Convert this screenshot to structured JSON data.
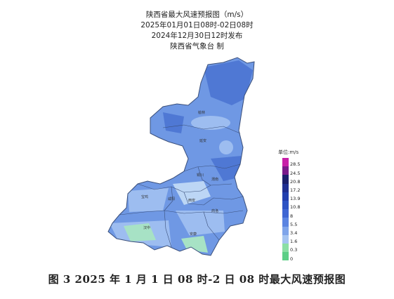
{
  "title": {
    "line1": "陕西省最大风速预报图（m/s）",
    "line2": "2025年01月01日08时-02日08时",
    "line3": "2024年12月30日12时发布",
    "line4": "陕西省气象台 制"
  },
  "legend": {
    "unit": "单位:m/s",
    "colors": [
      "#c81fa8",
      "#7a1a8a",
      "#1c1f6b",
      "#202f91",
      "#233fae",
      "#2d53c4",
      "#3f66d3",
      "#5b84e1",
      "#7fa5ea",
      "#a5c4f1",
      "#8bdfa5",
      "#5ccf86"
    ],
    "labels": [
      "28.5",
      "24.5",
      "20.8",
      "17.2",
      "13.9",
      "10.8",
      "8",
      "5.5",
      "3.4",
      "1.6",
      "0.3",
      "0"
    ]
  },
  "map": {
    "colors": {
      "base": "#6f98e4",
      "dark": "#4f78d4",
      "light": "#9dbdf0",
      "pale": "#bcd6f5",
      "green": "#a7e2c5",
      "border": "#3a4f7a"
    },
    "cities": [
      "榆林",
      "延安",
      "铜川",
      "渭南",
      "宝鸡",
      "咸阳",
      "西安",
      "商洛",
      "汉中",
      "安康"
    ]
  },
  "caption": "图 3  2025 年 1 月 1 日 08 时-2 日 08 时最大风速预报图"
}
